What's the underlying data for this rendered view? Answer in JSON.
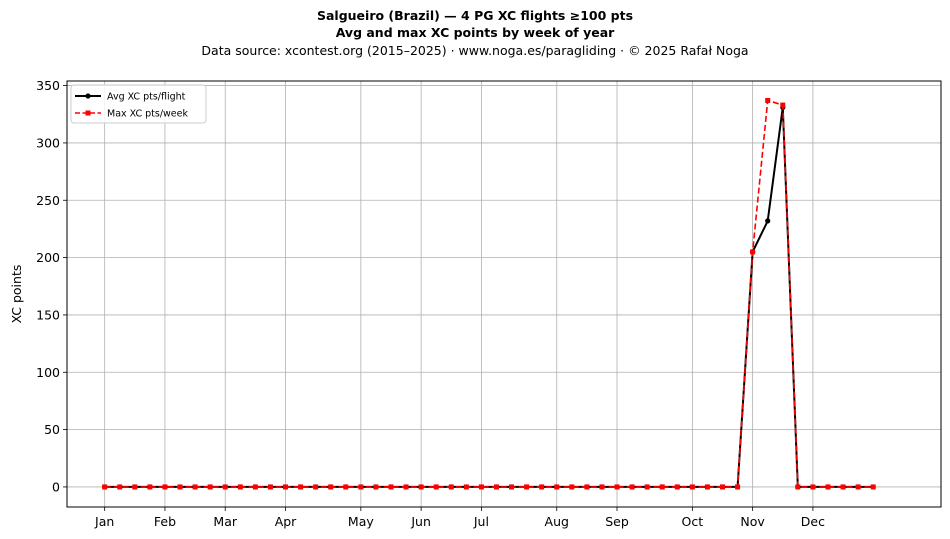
{
  "chart_data": {
    "type": "line",
    "title": "Salgueiro (Brazil)  —  4 PG XC flights ≥100 pts",
    "subtitle": "Avg and max XC points by week of year",
    "source_line": "Data source: xcontest.org (2015–2025)  ·  www.noga.es/paragliding  ·  © 2025 Rafał Noga",
    "xlabel": "",
    "ylabel": "XC points",
    "x_unit": "week of year",
    "xlim": [
      -1.5,
      56.5
    ],
    "ylim": [
      -17.5,
      354
    ],
    "yticks": [
      0,
      50,
      100,
      150,
      200,
      250,
      300,
      350
    ],
    "month_ticks": [
      {
        "label": "Jan",
        "week": 1
      },
      {
        "label": "Feb",
        "week": 5
      },
      {
        "label": "Mar",
        "week": 9
      },
      {
        "label": "Apr",
        "week": 13
      },
      {
        "label": "May",
        "week": 18
      },
      {
        "label": "Jun",
        "week": 22
      },
      {
        "label": "Jul",
        "week": 26
      },
      {
        "label": "Aug",
        "week": 31
      },
      {
        "label": "Sep",
        "week": 35
      },
      {
        "label": "Oct",
        "week": 40
      },
      {
        "label": "Nov",
        "week": 44
      },
      {
        "label": "Dec",
        "week": 48
      }
    ],
    "grid": true,
    "legend_position": "top-left",
    "x": [
      1,
      2,
      3,
      4,
      5,
      6,
      7,
      8,
      9,
      10,
      11,
      12,
      13,
      14,
      15,
      16,
      17,
      18,
      19,
      20,
      21,
      22,
      23,
      24,
      25,
      26,
      27,
      28,
      29,
      30,
      31,
      32,
      33,
      34,
      35,
      36,
      37,
      38,
      39,
      40,
      41,
      42,
      43,
      44,
      45,
      46,
      47,
      48,
      49,
      50,
      51,
      52
    ],
    "series": [
      {
        "name": "Avg XC pts/flight",
        "color": "#000000",
        "style": "solid",
        "marker": "circle",
        "values": [
          0,
          0,
          0,
          0,
          0,
          0,
          0,
          0,
          0,
          0,
          0,
          0,
          0,
          0,
          0,
          0,
          0,
          0,
          0,
          0,
          0,
          0,
          0,
          0,
          0,
          0,
          0,
          0,
          0,
          0,
          0,
          0,
          0,
          0,
          0,
          0,
          0,
          0,
          0,
          0,
          0,
          0,
          0,
          205,
          232,
          331,
          0,
          0,
          0,
          0,
          0,
          0
        ]
      },
      {
        "name": "Max XC pts/week",
        "color": "#ff0000",
        "style": "dashed",
        "marker": "square",
        "values": [
          0,
          0,
          0,
          0,
          0,
          0,
          0,
          0,
          0,
          0,
          0,
          0,
          0,
          0,
          0,
          0,
          0,
          0,
          0,
          0,
          0,
          0,
          0,
          0,
          0,
          0,
          0,
          0,
          0,
          0,
          0,
          0,
          0,
          0,
          0,
          0,
          0,
          0,
          0,
          0,
          0,
          0,
          0,
          205,
          337,
          333,
          0,
          0,
          0,
          0,
          0,
          0
        ]
      }
    ]
  }
}
